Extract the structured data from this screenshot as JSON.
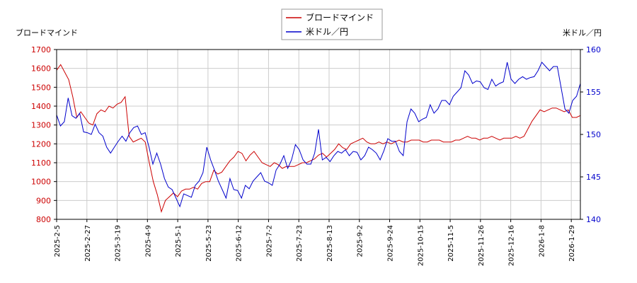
{
  "chart_data": {
    "type": "line",
    "left_axis_label": "ブロードマインド",
    "right_axis_label": "米ドル／円",
    "left_ylim": [
      800,
      1700
    ],
    "left_ticks": [
      800,
      900,
      1000,
      1100,
      1200,
      1300,
      1400,
      1500,
      1600,
      1700
    ],
    "right_ylim": [
      140,
      160
    ],
    "right_ticks": [
      140,
      145,
      150,
      155,
      160
    ],
    "x_tick_labels": [
      "2025-2-5",
      "2025-2-27",
      "2025-3-19",
      "2025-4-9",
      "2025-5-1",
      "2025-5-23",
      "2025-6-12",
      "2025-7-2",
      "2025-7-23",
      "2025-8-13",
      "2025-9-2",
      "2025-9-24",
      "2025-10-15",
      "2025-11-5",
      "2025-11-26",
      "2025-12-16",
      "2026-1-8",
      "2026-1-29"
    ],
    "grid": true,
    "legend_position": "top-center",
    "series": [
      {
        "name": "ブロードマインド",
        "axis": "left",
        "color": "#cc0000",
        "values": [
          1590,
          1620,
          1580,
          1540,
          1450,
          1340,
          1370,
          1340,
          1310,
          1300,
          1360,
          1380,
          1370,
          1400,
          1390,
          1410,
          1420,
          1450,
          1240,
          1210,
          1220,
          1230,
          1210,
          1100,
          1000,
          930,
          840,
          900,
          920,
          940,
          920,
          950,
          960,
          960,
          970,
          960,
          990,
          1000,
          1000,
          1060,
          1040,
          1050,
          1080,
          1110,
          1130,
          1160,
          1150,
          1110,
          1140,
          1160,
          1130,
          1100,
          1090,
          1080,
          1100,
          1090,
          1070,
          1080,
          1080,
          1080,
          1090,
          1100,
          1100,
          1110,
          1120,
          1140,
          1150,
          1130,
          1150,
          1170,
          1200,
          1180,
          1170,
          1200,
          1210,
          1220,
          1230,
          1210,
          1200,
          1200,
          1210,
          1200,
          1210,
          1200,
          1210,
          1220,
          1210,
          1210,
          1220,
          1220,
          1220,
          1210,
          1210,
          1220,
          1220,
          1220,
          1210,
          1210,
          1210,
          1220,
          1220,
          1230,
          1240,
          1230,
          1230,
          1220,
          1230,
          1230,
          1240,
          1230,
          1220,
          1230,
          1230,
          1230,
          1240,
          1230,
          1240,
          1280,
          1320,
          1350,
          1380,
          1370,
          1380,
          1390,
          1390,
          1380,
          1370,
          1380,
          1340,
          1340,
          1350
        ],
        "note": ""
      },
      {
        "name": "米ドル／円",
        "axis": "right",
        "color": "#0000cc",
        "values": [
          152.3,
          151.0,
          151.5,
          154.3,
          152.2,
          151.9,
          152.5,
          150.3,
          150.2,
          150.0,
          151.2,
          150.2,
          149.8,
          148.5,
          147.8,
          148.5,
          149.2,
          149.8,
          149.2,
          150.2,
          150.8,
          151.0,
          150.0,
          150.2,
          148.5,
          146.5,
          147.8,
          146.5,
          144.8,
          143.8,
          143.5,
          142.5,
          141.5,
          143.0,
          142.8,
          142.6,
          144.0,
          144.5,
          145.5,
          148.5,
          147.0,
          145.8,
          144.5,
          143.5,
          142.5,
          144.8,
          143.5,
          143.4,
          142.5,
          144.0,
          143.6,
          144.5,
          145.0,
          145.5,
          144.5,
          144.3,
          144.0,
          145.8,
          146.5,
          147.5,
          146.0,
          147.0,
          148.8,
          148.2,
          147.0,
          146.5,
          146.5,
          147.8,
          150.6,
          147.0,
          147.3,
          146.8,
          147.5,
          148.0,
          147.8,
          148.2,
          147.5,
          148.0,
          147.9,
          147.0,
          147.5,
          148.5,
          148.2,
          147.8,
          147.0,
          148.1,
          149.5,
          149.2,
          149.2,
          148.0,
          147.5,
          151.5,
          153.0,
          152.5,
          151.5,
          151.8,
          152.0,
          153.5,
          152.5,
          153.0,
          154.0,
          154.0,
          153.5,
          154.5,
          155.0,
          155.5,
          157.5,
          157.0,
          156.0,
          156.3,
          156.2,
          155.5,
          155.3,
          156.5,
          155.7,
          156.0,
          156.2,
          158.5,
          156.5,
          156.0,
          156.5,
          156.8,
          156.5,
          156.7,
          156.8,
          157.5,
          158.5,
          158.0,
          157.5,
          158.0,
          158.0,
          155.5,
          153.0,
          152.5,
          154.0,
          154.5,
          156.0
        ],
        "note": ""
      }
    ]
  }
}
